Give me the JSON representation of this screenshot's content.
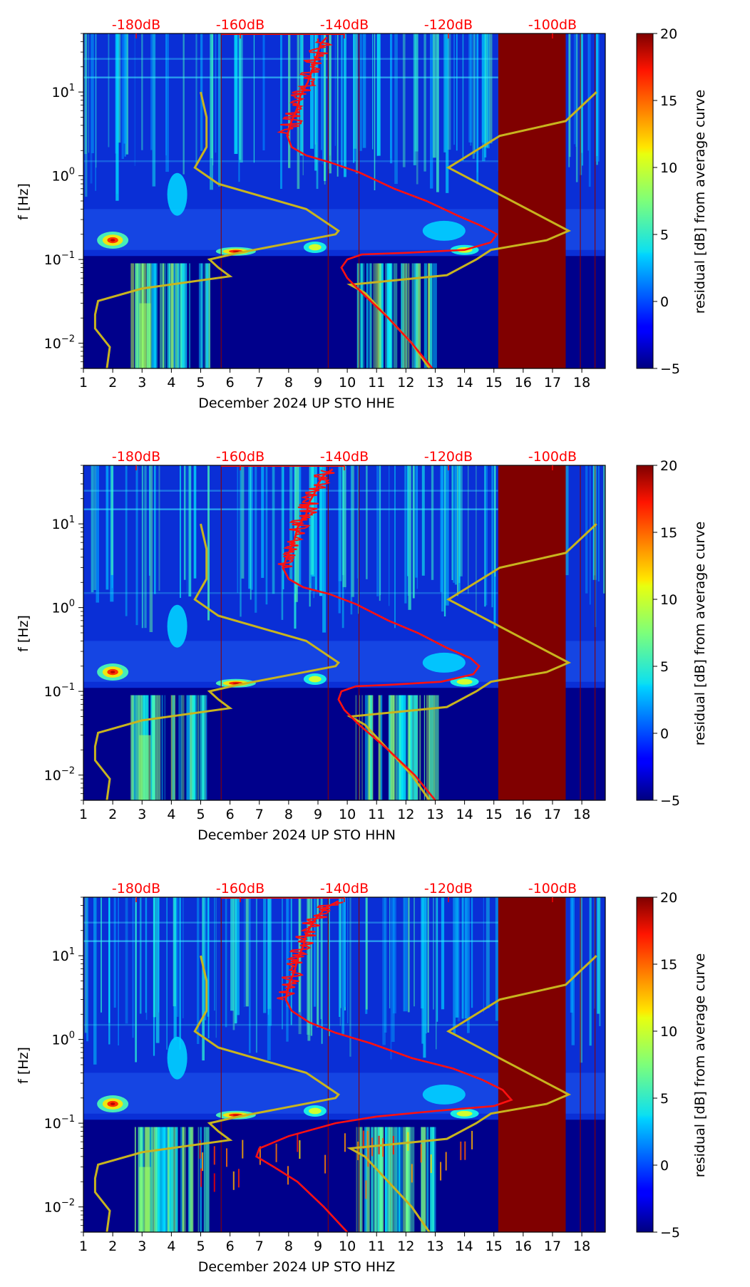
{
  "chart_data": [
    {
      "type": "heatmap",
      "channel": "HHE",
      "xlabel": "December 2024 UP STO  HHE",
      "ylabel": "f [Hz]",
      "x_ticks": [
        "1",
        "2",
        "3",
        "4",
        "5",
        "6",
        "7",
        "8",
        "9",
        "10",
        "11",
        "12",
        "13",
        "14",
        "15",
        "16",
        "17",
        "18"
      ],
      "xlim": [
        1,
        18.8
      ],
      "y_ticks": [
        {
          "value": 10,
          "mantissa": "10",
          "exponent": "1"
        },
        {
          "value": 1,
          "mantissa": "10",
          "exponent": "0"
        },
        {
          "value": 0.1,
          "mantissa": "10",
          "exponent": "−1"
        },
        {
          "value": 0.01,
          "mantissa": "10",
          "exponent": "−2"
        }
      ],
      "ylim": [
        0.005,
        50
      ],
      "top_axis_labels": [
        {
          "x": 2.8,
          "label": "-180dB"
        },
        {
          "x": 6.35,
          "label": "-160dB"
        },
        {
          "x": 9.9,
          "label": "-140dB"
        },
        {
          "x": 13.45,
          "label": "-120dB"
        },
        {
          "x": 17.0,
          "label": "-100dB"
        }
      ],
      "colorbar": {
        "label": "residual [dB] from average curve",
        "range": [
          -5,
          20
        ],
        "ticks": [
          "−5",
          "0",
          "5",
          "10",
          "15",
          "20"
        ]
      },
      "masked_band": {
        "x_start": 15.15,
        "x_end": 17.45
      },
      "red_curve": [
        [
          9.3,
          45
        ],
        [
          9.1,
          38
        ],
        [
          9.0,
          30
        ],
        [
          8.9,
          24
        ],
        [
          8.8,
          18
        ],
        [
          8.65,
          13
        ],
        [
          8.4,
          9
        ],
        [
          8.3,
          6.5
        ],
        [
          8.1,
          4.5
        ],
        [
          7.95,
          3
        ],
        [
          8.1,
          2.2
        ],
        [
          8.6,
          1.75
        ],
        [
          9.4,
          1.45
        ],
        [
          10.4,
          1.1
        ],
        [
          11.6,
          0.7
        ],
        [
          12.7,
          0.5
        ],
        [
          13.8,
          0.33
        ],
        [
          14.6,
          0.25
        ],
        [
          15.1,
          0.2
        ],
        [
          14.9,
          0.16
        ],
        [
          14.0,
          0.13
        ],
        [
          12.0,
          0.12
        ],
        [
          10.5,
          0.115
        ],
        [
          10.0,
          0.1
        ],
        [
          9.8,
          0.08
        ],
        [
          10.0,
          0.06
        ],
        [
          10.5,
          0.04
        ],
        [
          11.4,
          0.02
        ],
        [
          12.2,
          0.01
        ],
        [
          12.9,
          0.005
        ]
      ],
      "yellow_nhnm": [
        [
          18.5,
          10
        ],
        [
          17.45,
          4.5
        ],
        [
          15.2,
          3
        ],
        [
          13.45,
          1.25
        ],
        [
          17.55,
          0.22
        ],
        [
          16.8,
          0.17
        ],
        [
          14.9,
          0.13
        ],
        [
          14.4,
          0.1
        ],
        [
          13.4,
          0.065
        ],
        [
          10.1,
          0.05
        ],
        [
          10.6,
          0.04
        ],
        [
          12.2,
          0.01
        ],
        [
          12.8,
          0.005
        ]
      ],
      "yellow_nlnm": [
        [
          5.0,
          10
        ],
        [
          5.2,
          5
        ],
        [
          5.2,
          2.2
        ],
        [
          4.8,
          1.25
        ],
        [
          5.6,
          0.8
        ],
        [
          8.6,
          0.4
        ],
        [
          9.7,
          0.22
        ],
        [
          9.6,
          0.2
        ],
        [
          6.3,
          0.12
        ],
        [
          5.3,
          0.1
        ],
        [
          5.6,
          0.08
        ],
        [
          6.0,
          0.063
        ],
        [
          3.0,
          0.045
        ],
        [
          1.5,
          0.032
        ],
        [
          1.4,
          0.022
        ],
        [
          1.4,
          0.015
        ],
        [
          1.9,
          0.009
        ],
        [
          1.8,
          0.005
        ]
      ]
    },
    {
      "type": "heatmap",
      "channel": "HHN",
      "xlabel": "December 2024 UP STO  HHN",
      "ylabel": "f [Hz]",
      "x_ticks": [
        "1",
        "2",
        "3",
        "4",
        "5",
        "6",
        "7",
        "8",
        "9",
        "10",
        "11",
        "12",
        "13",
        "14",
        "15",
        "16",
        "17",
        "18"
      ],
      "xlim": [
        1,
        18.8
      ],
      "y_ticks": [
        {
          "value": 10,
          "mantissa": "10",
          "exponent": "1"
        },
        {
          "value": 1,
          "mantissa": "10",
          "exponent": "0"
        },
        {
          "value": 0.1,
          "mantissa": "10",
          "exponent": "−1"
        },
        {
          "value": 0.01,
          "mantissa": "10",
          "exponent": "−2"
        }
      ],
      "ylim": [
        0.005,
        50
      ],
      "top_axis_labels": [
        {
          "x": 2.8,
          "label": "-180dB"
        },
        {
          "x": 6.35,
          "label": "-160dB"
        },
        {
          "x": 9.9,
          "label": "-140dB"
        },
        {
          "x": 13.45,
          "label": "-120dB"
        },
        {
          "x": 17.0,
          "label": "-100dB"
        }
      ],
      "colorbar": {
        "label": "residual [dB] from average curve",
        "range": [
          -5,
          20
        ],
        "ticks": [
          "−5",
          "0",
          "5",
          "10",
          "15",
          "20"
        ]
      },
      "masked_band": {
        "x_start": 15.15,
        "x_end": 17.45
      },
      "red_curve": [
        [
          9.5,
          45
        ],
        [
          9.2,
          38
        ],
        [
          9.0,
          30
        ],
        [
          8.9,
          24
        ],
        [
          8.7,
          18
        ],
        [
          8.6,
          13
        ],
        [
          8.3,
          9
        ],
        [
          8.2,
          6.5
        ],
        [
          8.0,
          4.5
        ],
        [
          7.8,
          3
        ],
        [
          8.0,
          2.2
        ],
        [
          8.5,
          1.75
        ],
        [
          9.4,
          1.45
        ],
        [
          10.3,
          1.1
        ],
        [
          11.4,
          0.7
        ],
        [
          12.4,
          0.5
        ],
        [
          13.4,
          0.33
        ],
        [
          14.2,
          0.25
        ],
        [
          14.5,
          0.2
        ],
        [
          14.3,
          0.16
        ],
        [
          13.2,
          0.13
        ],
        [
          11.5,
          0.12
        ],
        [
          10.3,
          0.115
        ],
        [
          9.8,
          0.1
        ],
        [
          9.7,
          0.08
        ],
        [
          9.9,
          0.06
        ],
        [
          10.4,
          0.04
        ],
        [
          11.4,
          0.02
        ],
        [
          12.3,
          0.01
        ],
        [
          13.0,
          0.005
        ]
      ],
      "yellow_nhnm": [
        [
          18.5,
          10
        ],
        [
          17.45,
          4.5
        ],
        [
          15.2,
          3
        ],
        [
          13.45,
          1.25
        ],
        [
          17.55,
          0.22
        ],
        [
          16.8,
          0.17
        ],
        [
          14.9,
          0.13
        ],
        [
          14.4,
          0.1
        ],
        [
          13.4,
          0.065
        ],
        [
          10.1,
          0.05
        ],
        [
          10.6,
          0.04
        ],
        [
          12.2,
          0.01
        ],
        [
          12.8,
          0.005
        ]
      ],
      "yellow_nlnm": [
        [
          5.0,
          10
        ],
        [
          5.2,
          5
        ],
        [
          5.2,
          2.2
        ],
        [
          4.8,
          1.25
        ],
        [
          5.6,
          0.8
        ],
        [
          8.6,
          0.4
        ],
        [
          9.7,
          0.22
        ],
        [
          9.6,
          0.2
        ],
        [
          6.3,
          0.12
        ],
        [
          5.3,
          0.1
        ],
        [
          5.6,
          0.08
        ],
        [
          6.0,
          0.063
        ],
        [
          3.0,
          0.045
        ],
        [
          1.5,
          0.032
        ],
        [
          1.4,
          0.022
        ],
        [
          1.4,
          0.015
        ],
        [
          1.9,
          0.009
        ],
        [
          1.8,
          0.005
        ]
      ]
    },
    {
      "type": "heatmap",
      "channel": "HHZ",
      "xlabel": "December 2024 UP STO  HHZ",
      "ylabel": "f [Hz]",
      "x_ticks": [
        "1",
        "2",
        "3",
        "4",
        "5",
        "6",
        "7",
        "8",
        "9",
        "10",
        "11",
        "12",
        "13",
        "14",
        "15",
        "16",
        "17",
        "18"
      ],
      "xlim": [
        1,
        18.8
      ],
      "y_ticks": [
        {
          "value": 10,
          "mantissa": "10",
          "exponent": "1"
        },
        {
          "value": 1,
          "mantissa": "10",
          "exponent": "0"
        },
        {
          "value": 0.1,
          "mantissa": "10",
          "exponent": "−1"
        },
        {
          "value": 0.01,
          "mantissa": "10",
          "exponent": "−2"
        }
      ],
      "ylim": [
        0.005,
        50
      ],
      "top_axis_labels": [
        {
          "x": 2.8,
          "label": "-180dB"
        },
        {
          "x": 6.35,
          "label": "-160dB"
        },
        {
          "x": 9.9,
          "label": "-140dB"
        },
        {
          "x": 13.45,
          "label": "-120dB"
        },
        {
          "x": 17.0,
          "label": "-100dB"
        }
      ],
      "colorbar": {
        "label": "residual [dB] from average curve",
        "range": [
          -5,
          20
        ],
        "ticks": [
          "−5",
          "0",
          "5",
          "10",
          "15",
          "20"
        ]
      },
      "masked_band": {
        "x_start": 15.15,
        "x_end": 17.45
      },
      "red_curve": [
        [
          9.7,
          45
        ],
        [
          9.3,
          38
        ],
        [
          9.0,
          30
        ],
        [
          8.8,
          24
        ],
        [
          8.6,
          18
        ],
        [
          8.5,
          13
        ],
        [
          8.3,
          9
        ],
        [
          8.2,
          6.5
        ],
        [
          8.0,
          4.5
        ],
        [
          7.9,
          3
        ],
        [
          8.1,
          2.2
        ],
        [
          8.7,
          1.6
        ],
        [
          9.6,
          1.2
        ],
        [
          10.8,
          0.9
        ],
        [
          12.2,
          0.6
        ],
        [
          13.6,
          0.45
        ],
        [
          14.6,
          0.33
        ],
        [
          15.3,
          0.25
        ],
        [
          15.6,
          0.19
        ],
        [
          15.0,
          0.16
        ],
        [
          13.0,
          0.14
        ],
        [
          11.0,
          0.12
        ],
        [
          9.6,
          0.1
        ],
        [
          8.0,
          0.07
        ],
        [
          7.0,
          0.05
        ],
        [
          6.9,
          0.04
        ],
        [
          7.5,
          0.03
        ],
        [
          8.3,
          0.02
        ],
        [
          9.2,
          0.01
        ],
        [
          10.0,
          0.005
        ]
      ],
      "yellow_nhnm": [
        [
          18.5,
          10
        ],
        [
          17.45,
          4.5
        ],
        [
          15.2,
          3
        ],
        [
          13.45,
          1.25
        ],
        [
          17.55,
          0.22
        ],
        [
          16.8,
          0.17
        ],
        [
          14.9,
          0.13
        ],
        [
          14.4,
          0.1
        ],
        [
          13.4,
          0.065
        ],
        [
          10.1,
          0.05
        ],
        [
          10.6,
          0.04
        ],
        [
          12.2,
          0.01
        ],
        [
          12.8,
          0.005
        ]
      ],
      "yellow_nlnm": [
        [
          5.0,
          10
        ],
        [
          5.2,
          5
        ],
        [
          5.2,
          2.2
        ],
        [
          4.8,
          1.25
        ],
        [
          5.6,
          0.8
        ],
        [
          8.6,
          0.4
        ],
        [
          9.7,
          0.22
        ],
        [
          9.6,
          0.2
        ],
        [
          6.3,
          0.12
        ],
        [
          5.3,
          0.1
        ],
        [
          5.6,
          0.08
        ],
        [
          6.0,
          0.063
        ],
        [
          3.0,
          0.045
        ],
        [
          1.5,
          0.032
        ],
        [
          1.4,
          0.022
        ],
        [
          1.4,
          0.015
        ],
        [
          1.9,
          0.009
        ],
        [
          1.8,
          0.005
        ]
      ]
    }
  ],
  "colors": {
    "background": "#00008b",
    "masked": "#800000",
    "red_curve": "#ff1010",
    "yellow_curve": "#c8b41e",
    "top_label": "#ff0000"
  }
}
